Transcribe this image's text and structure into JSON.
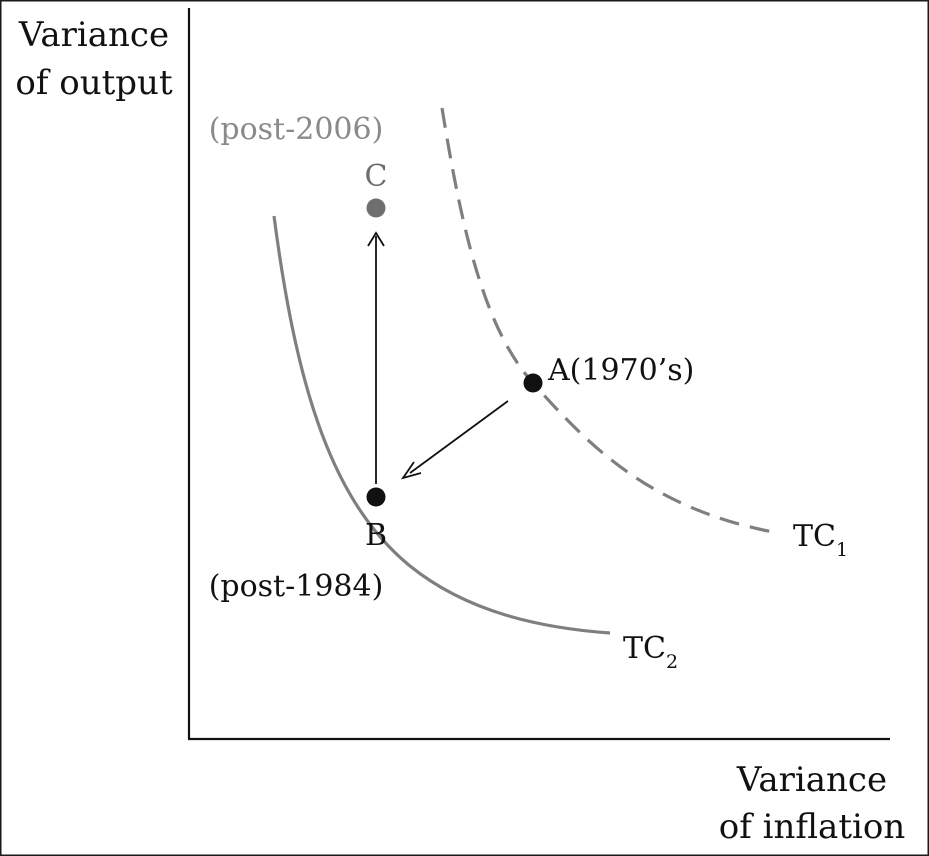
{
  "axes": {
    "y_label_line1": "Variance",
    "y_label_line2": "of output",
    "x_label_line1": "Variance",
    "x_label_line2": "of inflation"
  },
  "curves": {
    "tc1": {
      "prefix": "TC",
      "subscript": "1",
      "style": "dashed"
    },
    "tc2": {
      "prefix": "TC",
      "subscript": "2",
      "style": "solid"
    }
  },
  "points": {
    "a": {
      "label": "A(1970’s)"
    },
    "b": {
      "label": "B",
      "note": "(post-1984)"
    },
    "c": {
      "label": "C",
      "note": "(post-2006)"
    }
  },
  "colors": {
    "frame": "#1a1a1a",
    "axis": "#111111",
    "curve": "#7f7f7f",
    "point_dark": "#111111",
    "point_c": "#6e6e6e",
    "note_gray": "#8a8a8a",
    "text": "#111111"
  }
}
